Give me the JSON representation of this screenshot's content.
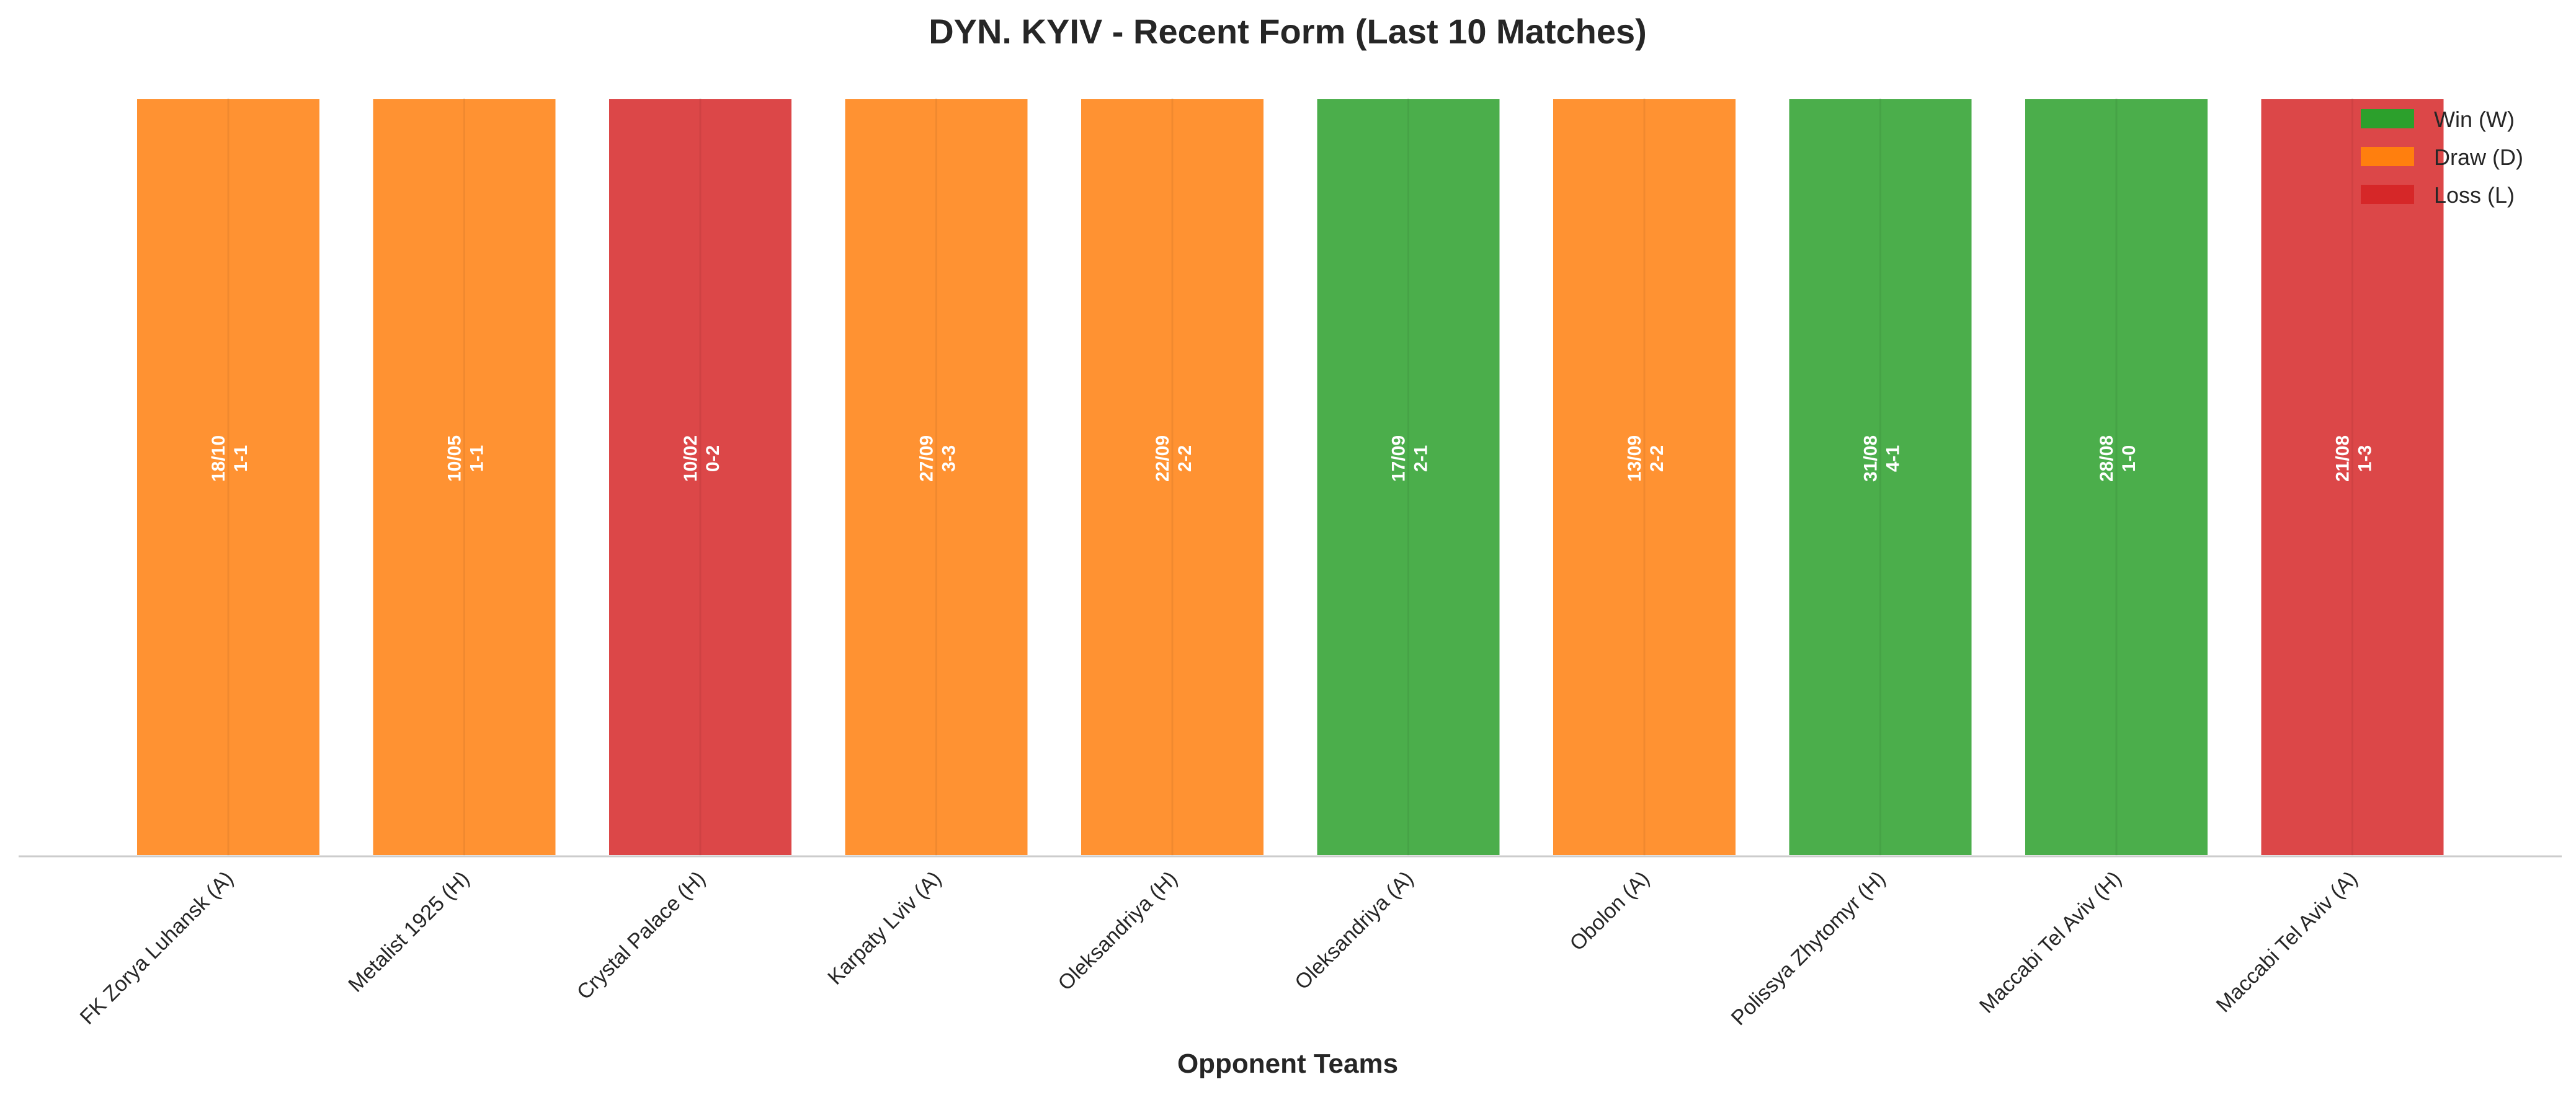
{
  "chart_data": {
    "type": "bar",
    "title": "DYN. KYIV - Recent Form (Last 10 Matches)",
    "xlabel": "Opponent Teams",
    "ylabel": "",
    "categories": [
      "FK Zorya Luhansk (A)",
      "Metalist 1925 (H)",
      "Crystal Palace (H)",
      "Karpaty Lviv (A)",
      "Oleksandriya (H)",
      "Oleksandriya (A)",
      "Obolon (A)",
      "Polissya Zhytomyr (H)",
      "Maccabi Tel Aviv (H)",
      "Maccabi Tel Aviv (A)"
    ],
    "values": [
      1,
      1,
      1,
      1,
      1,
      1,
      1,
      1,
      1,
      1
    ],
    "results": [
      "D",
      "D",
      "L",
      "D",
      "D",
      "W",
      "D",
      "W",
      "W",
      "L"
    ],
    "dates": [
      "18/10",
      "10/05",
      "10/02",
      "27/09",
      "22/09",
      "17/09",
      "13/09",
      "31/08",
      "28/08",
      "21/08"
    ],
    "scores": [
      "1-1",
      "1-1",
      "0-2",
      "3-3",
      "2-2",
      "2-1",
      "2-2",
      "4-1",
      "1-0",
      "1-3"
    ],
    "ylim": [
      0,
      1.13
    ],
    "grid": false,
    "legend_position": "top-right",
    "legend": [
      {
        "key": "W",
        "label": "Win (W)"
      },
      {
        "key": "D",
        "label": "Draw (D)"
      },
      {
        "key": "L",
        "label": "Loss (L)"
      }
    ],
    "colors": {
      "W": "#2ca02c",
      "D": "#ff7f0e",
      "L": "#d62728",
      "axis": "#cccccc",
      "text": "#262626",
      "bar_label": "#ffffff"
    }
  }
}
